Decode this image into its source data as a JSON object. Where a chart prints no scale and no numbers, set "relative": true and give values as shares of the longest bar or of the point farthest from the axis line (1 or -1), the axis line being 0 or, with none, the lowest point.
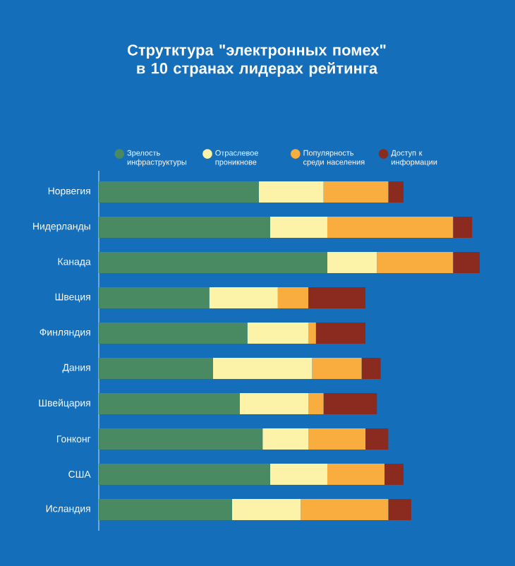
{
  "chart_data": {
    "type": "bar",
    "stacked": true,
    "relative": true,
    "orientation": "horizontal",
    "legend": "top",
    "title": "Струтктура \"электронных помех\" в 10 странах лидерах рейтинга",
    "categories": [
      "Норвегия",
      "Нидерланды",
      "Канада",
      "Швеция",
      "Финляндия",
      "Дания",
      "Швейцария",
      "Гонконг",
      "США",
      "Исландия"
    ],
    "series": [
      {
        "name": "Зрелость инфраструктуры",
        "color": "#4a8a63",
        "values": [
          0.42,
          0.45,
          0.6,
          0.29,
          0.39,
          0.3,
          0.37,
          0.43,
          0.45,
          0.35
        ]
      },
      {
        "name": "Отраслевое проникнове",
        "color": "#fdf3a8",
        "values": [
          0.17,
          0.15,
          0.13,
          0.18,
          0.16,
          0.26,
          0.18,
          0.12,
          0.15,
          0.18
        ]
      },
      {
        "name": "Популярность среди населения",
        "color": "#f9ad3f",
        "values": [
          0.17,
          0.33,
          0.2,
          0.08,
          0.02,
          0.13,
          0.04,
          0.15,
          0.15,
          0.23
        ]
      },
      {
        "name": "Доступ к информации",
        "color": "#8b2a1e",
        "values": [
          0.04,
          0.05,
          0.07,
          0.15,
          0.13,
          0.05,
          0.14,
          0.06,
          0.05,
          0.06
        ]
      }
    ]
  }
}
